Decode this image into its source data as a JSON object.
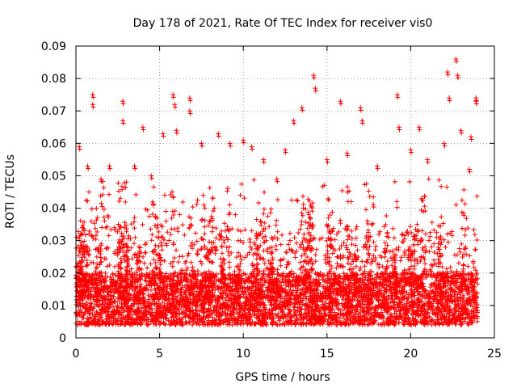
{
  "chart_data": {
    "type": "scatter",
    "title": "Day 178 of 2021, Rate Of TEC Index for receiver vis0",
    "xlabel": "GPS time / hours",
    "ylabel": "ROTI / TECUs",
    "xlim": [
      0,
      25
    ],
    "ylim": [
      0,
      0.09
    ],
    "x_ticks": [
      0,
      5,
      10,
      15,
      20,
      25
    ],
    "x_tick_labels": [
      "0",
      "5",
      "10",
      "15",
      "20",
      "25"
    ],
    "y_ticks": [
      0,
      0.01,
      0.02,
      0.03,
      0.04,
      0.05,
      0.06,
      0.07,
      0.08,
      0.09
    ],
    "y_tick_labels": [
      "0",
      "0.01",
      "0.02",
      "0.03",
      "0.04",
      "0.05",
      "0.06",
      "0.07",
      "0.08",
      "0.09"
    ],
    "grid": true,
    "marker": "+",
    "color": "#ff0000",
    "series": [
      {
        "name": "ROTI",
        "x_range": [
          0,
          24
        ],
        "bulk_range": [
          0.004,
          0.02
        ],
        "notable_points": [
          {
            "x": 0.2,
            "y": 0.059
          },
          {
            "x": 0.7,
            "y": 0.053
          },
          {
            "x": 1.0,
            "y": 0.075
          },
          {
            "x": 1.0,
            "y": 0.072
          },
          {
            "x": 1.5,
            "y": 0.049
          },
          {
            "x": 2.0,
            "y": 0.053
          },
          {
            "x": 2.8,
            "y": 0.073
          },
          {
            "x": 2.8,
            "y": 0.067
          },
          {
            "x": 3.5,
            "y": 0.053
          },
          {
            "x": 4.0,
            "y": 0.065
          },
          {
            "x": 4.5,
            "y": 0.05
          },
          {
            "x": 5.2,
            "y": 0.063
          },
          {
            "x": 5.8,
            "y": 0.075
          },
          {
            "x": 5.9,
            "y": 0.072
          },
          {
            "x": 6.0,
            "y": 0.064
          },
          {
            "x": 6.8,
            "y": 0.074
          },
          {
            "x": 6.8,
            "y": 0.07
          },
          {
            "x": 7.5,
            "y": 0.06
          },
          {
            "x": 8.5,
            "y": 0.063
          },
          {
            "x": 9.2,
            "y": 0.06
          },
          {
            "x": 10.0,
            "y": 0.061
          },
          {
            "x": 10.5,
            "y": 0.059
          },
          {
            "x": 11.2,
            "y": 0.055
          },
          {
            "x": 12.0,
            "y": 0.049
          },
          {
            "x": 12.5,
            "y": 0.058
          },
          {
            "x": 13.0,
            "y": 0.067
          },
          {
            "x": 13.5,
            "y": 0.071
          },
          {
            "x": 14.2,
            "y": 0.081
          },
          {
            "x": 14.3,
            "y": 0.077
          },
          {
            "x": 15.0,
            "y": 0.055
          },
          {
            "x": 15.8,
            "y": 0.073
          },
          {
            "x": 16.2,
            "y": 0.057
          },
          {
            "x": 17.0,
            "y": 0.071
          },
          {
            "x": 17.1,
            "y": 0.067
          },
          {
            "x": 18.0,
            "y": 0.053
          },
          {
            "x": 19.2,
            "y": 0.075
          },
          {
            "x": 19.3,
            "y": 0.065
          },
          {
            "x": 20.0,
            "y": 0.058
          },
          {
            "x": 20.5,
            "y": 0.065
          },
          {
            "x": 21.0,
            "y": 0.055
          },
          {
            "x": 22.0,
            "y": 0.06
          },
          {
            "x": 22.2,
            "y": 0.082
          },
          {
            "x": 22.3,
            "y": 0.074
          },
          {
            "x": 22.7,
            "y": 0.086
          },
          {
            "x": 22.8,
            "y": 0.081
          },
          {
            "x": 23.0,
            "y": 0.064
          },
          {
            "x": 23.6,
            "y": 0.062
          },
          {
            "x": 23.9,
            "y": 0.074
          },
          {
            "x": 23.9,
            "y": 0.073
          },
          {
            "x": 23.5,
            "y": 0.052
          }
        ]
      }
    ]
  }
}
